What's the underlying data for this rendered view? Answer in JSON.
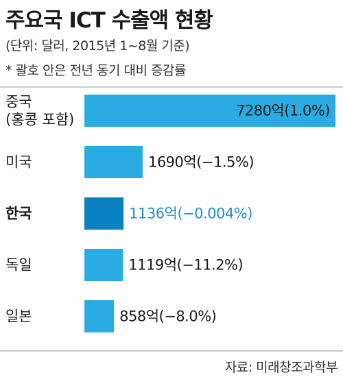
{
  "title": "주요국 ICT 수출액 현황",
  "subtitle": "(단위: 달러, 2015년 1~8월 기준)",
  "note": "* 괄호 안은 전년 동기 대비 증감률",
  "source": "자료: 미래창조과학부",
  "colors": {
    "bar": "#2aace2",
    "highlight_bar": "#0a81c2",
    "highlight_text": "#1f8fc9",
    "rule": "#999999"
  },
  "chart_data": {
    "type": "bar",
    "orientation": "horizontal",
    "unit": "억 달러",
    "categories": [
      [
        "중국",
        "(홍콩 포함)"
      ],
      [
        "미국"
      ],
      [
        "한국"
      ],
      [
        "독일"
      ],
      [
        "일본"
      ]
    ],
    "values": [
      7280,
      1690,
      1136,
      1119,
      858
    ],
    "value_labels": [
      "7280억(1.0%)",
      "1690억(−1.5%)",
      "1136억(−0.004%)",
      "1119억(−11.2%)",
      "858억(−8.0%)"
    ],
    "highlight_index": 2,
    "xlim": [
      0,
      7280
    ]
  }
}
